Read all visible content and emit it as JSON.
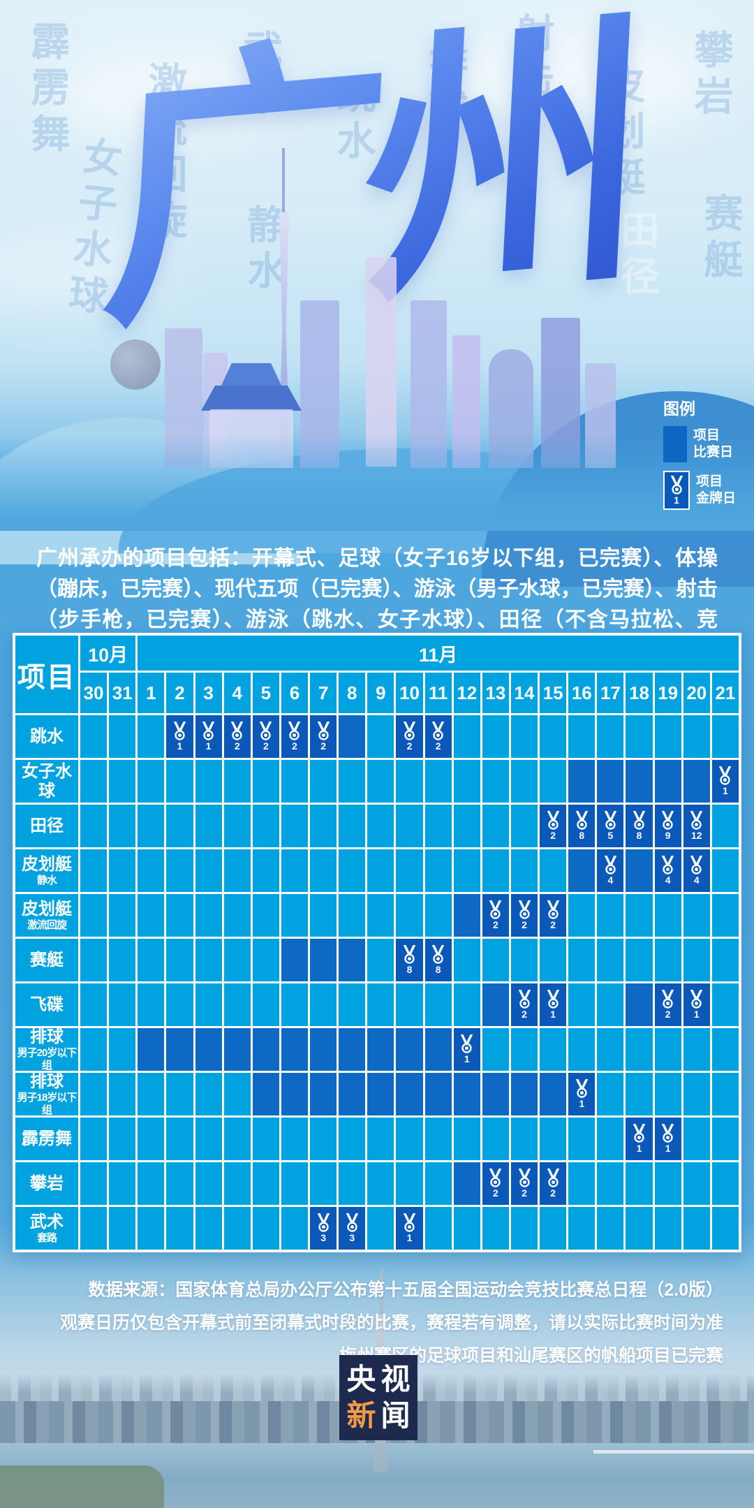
{
  "poster": {
    "title": "广州",
    "watermarks": [
      "霹雳舞",
      "女子水球",
      "激流回旋",
      "武术",
      "静水",
      "跳水",
      "排球",
      "射击",
      "皮划艇",
      "攀岩",
      "赛艇",
      "田径"
    ]
  },
  "legend": {
    "title": "图例",
    "match": {
      "line1": "项目",
      "line2": "比赛日"
    },
    "gold": {
      "line1": "项目",
      "line2": "金牌日",
      "count": "1"
    }
  },
  "intro": "广州承办的项目包括：开幕式、足球（女子16岁以下组，已完赛）、体操（蹦床，已完赛）、现代五项（已完赛）、游泳（男子水球，已完赛）、射击（步手枪，已完赛）、游泳（跳水、女子水球）、田径（不含马拉松、竞走）、皮划艇（静水、激流回旋）、赛艇、射击（飞碟）、排球（男子20岁以下组、男子18岁以下组）、霹雳舞、攀岩、武术（套路）。",
  "table": {
    "corner": "项目",
    "months": [
      {
        "label": "10月",
        "span": 2
      },
      {
        "label": "11月",
        "span": 21
      }
    ],
    "dates": [
      "30",
      "31",
      "1",
      "2",
      "3",
      "4",
      "5",
      "6",
      "7",
      "8",
      "9",
      "10",
      "11",
      "12",
      "13",
      "14",
      "15",
      "16",
      "17",
      "18",
      "19",
      "20",
      "21"
    ],
    "rows": [
      {
        "label": "跳水",
        "days": [
          [
            "2",
            1
          ],
          [
            "3",
            1
          ],
          [
            "4",
            2
          ],
          [
            "5",
            2
          ],
          [
            "6",
            2
          ],
          [
            "7",
            2
          ],
          [
            "8",
            0
          ],
          [
            "10",
            2
          ],
          [
            "11",
            2
          ]
        ]
      },
      {
        "label": "女子水球",
        "days": [
          [
            "16",
            0
          ],
          [
            "17",
            0
          ],
          [
            "18",
            0
          ],
          [
            "19",
            0
          ],
          [
            "20",
            0
          ],
          [
            "21",
            1
          ]
        ]
      },
      {
        "label": "田径",
        "days": [
          [
            "15",
            2
          ],
          [
            "16",
            8
          ],
          [
            "17",
            5
          ],
          [
            "18",
            8
          ],
          [
            "19",
            9
          ],
          [
            "20",
            12
          ]
        ]
      },
      {
        "label": "皮划艇",
        "sub": "静水",
        "days": [
          [
            "16",
            0
          ],
          [
            "17",
            4
          ],
          [
            "18",
            0
          ],
          [
            "19",
            4
          ],
          [
            "20",
            4
          ]
        ]
      },
      {
        "label": "皮划艇",
        "sub": "激流回旋",
        "days": [
          [
            "12",
            0
          ],
          [
            "13",
            2
          ],
          [
            "14",
            2
          ],
          [
            "15",
            2
          ]
        ]
      },
      {
        "label": "赛艇",
        "days": [
          [
            "6",
            0
          ],
          [
            "7",
            0
          ],
          [
            "8",
            0
          ],
          [
            "10",
            8
          ],
          [
            "11",
            8
          ]
        ]
      },
      {
        "label": "飞碟",
        "days": [
          [
            "13",
            0
          ],
          [
            "14",
            2
          ],
          [
            "15",
            1
          ],
          [
            "18",
            0
          ],
          [
            "19",
            2
          ],
          [
            "20",
            1
          ]
        ]
      },
      {
        "label": "排球",
        "sub": "男子20岁以下组",
        "days": [
          [
            "1",
            0
          ],
          [
            "2",
            0
          ],
          [
            "3",
            0
          ],
          [
            "4",
            0
          ],
          [
            "5",
            0
          ],
          [
            "6",
            0
          ],
          [
            "7",
            0
          ],
          [
            "8",
            0
          ],
          [
            "9",
            0
          ],
          [
            "10",
            0
          ],
          [
            "11",
            0
          ],
          [
            "12",
            1
          ]
        ]
      },
      {
        "label": "排球",
        "sub": "男子18岁以下组",
        "days": [
          [
            "5",
            0
          ],
          [
            "6",
            0
          ],
          [
            "7",
            0
          ],
          [
            "8",
            0
          ],
          [
            "9",
            0
          ],
          [
            "10",
            0
          ],
          [
            "11",
            0
          ],
          [
            "12",
            0
          ],
          [
            "13",
            0
          ],
          [
            "14",
            0
          ],
          [
            "15",
            0
          ],
          [
            "16",
            1
          ]
        ]
      },
      {
        "label": "霹雳舞",
        "days": [
          [
            "18",
            1
          ],
          [
            "19",
            1
          ]
        ]
      },
      {
        "label": "攀岩",
        "days": [
          [
            "12",
            0
          ],
          [
            "13",
            2
          ],
          [
            "14",
            2
          ],
          [
            "15",
            2
          ]
        ]
      },
      {
        "label": "武术",
        "sub": "套路",
        "days": [
          [
            "7",
            3
          ],
          [
            "8",
            3
          ],
          [
            "10",
            1
          ]
        ]
      }
    ]
  },
  "footnotes": [
    "数据来源：国家体育总局办公厅公布第十五届全国运动会竞技比赛总日程（2.0版）",
    "观赛日历仅包含开幕式前至闭幕式时段的比赛，赛程若有调整，请以实际比赛时间为准",
    "梅州赛区的足球项目和汕尾赛区的帆船项目已完赛"
  ],
  "logo": {
    "top": "央视",
    "bottom1": "新",
    "bottom2": "闻"
  },
  "colors": {
    "cell_base": "#00A3E0",
    "cell_match": "#0E69C4",
    "cell_gold": "#0A58B8",
    "hill_dark": "#3E8FD2",
    "logo_bg": "#1E2A4D",
    "logo_orange": "#F2994A"
  }
}
